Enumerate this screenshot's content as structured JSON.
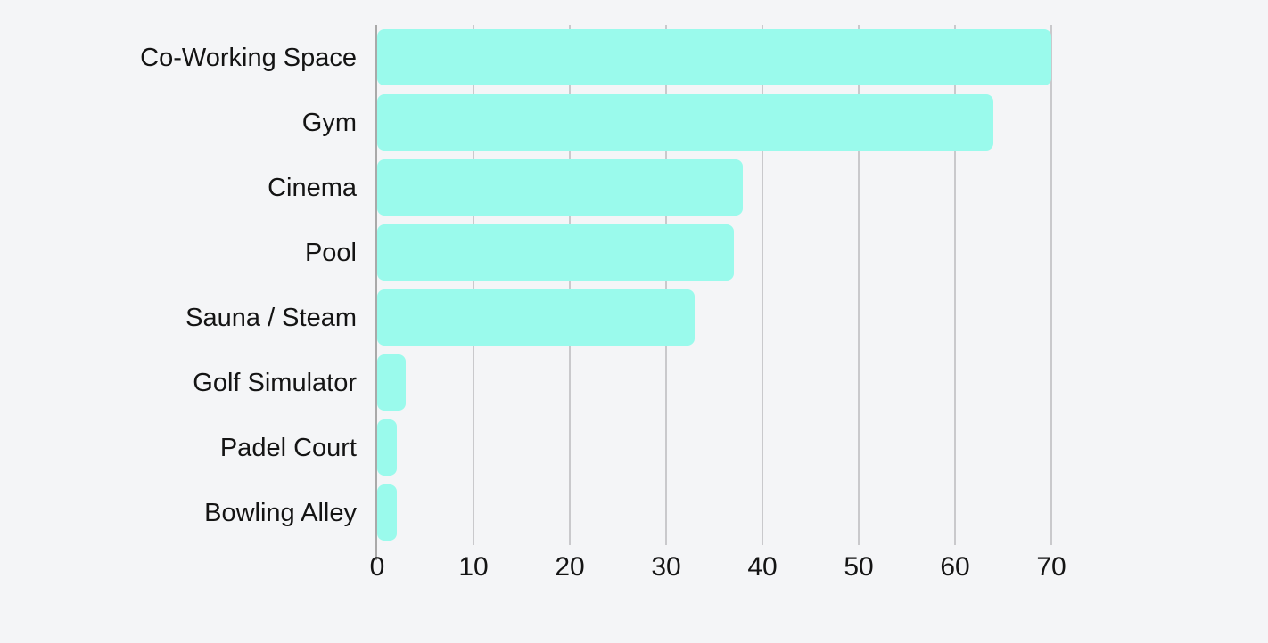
{
  "page": {
    "background_color": "#f4f5f7"
  },
  "chart_data": {
    "type": "bar",
    "orientation": "horizontal",
    "title": "",
    "xlabel": "",
    "ylabel": "",
    "categories": [
      "Co-Working Space",
      "Gym",
      "Cinema",
      "Pool",
      "Sauna / Steam",
      "Golf Simulator",
      "Padel Court",
      "Bowling Alley"
    ],
    "values": [
      70,
      64,
      38,
      37,
      33,
      3,
      2,
      2
    ],
    "xticks": [
      0,
      10,
      20,
      30,
      40,
      50,
      60,
      70
    ],
    "xlim": [
      0,
      70
    ],
    "grid": true,
    "legend": false,
    "bar_color": "#9afaec",
    "grid_color": "#c9c9cc",
    "zero_line_color": "#a9a9a9",
    "text_color": "#141414"
  }
}
